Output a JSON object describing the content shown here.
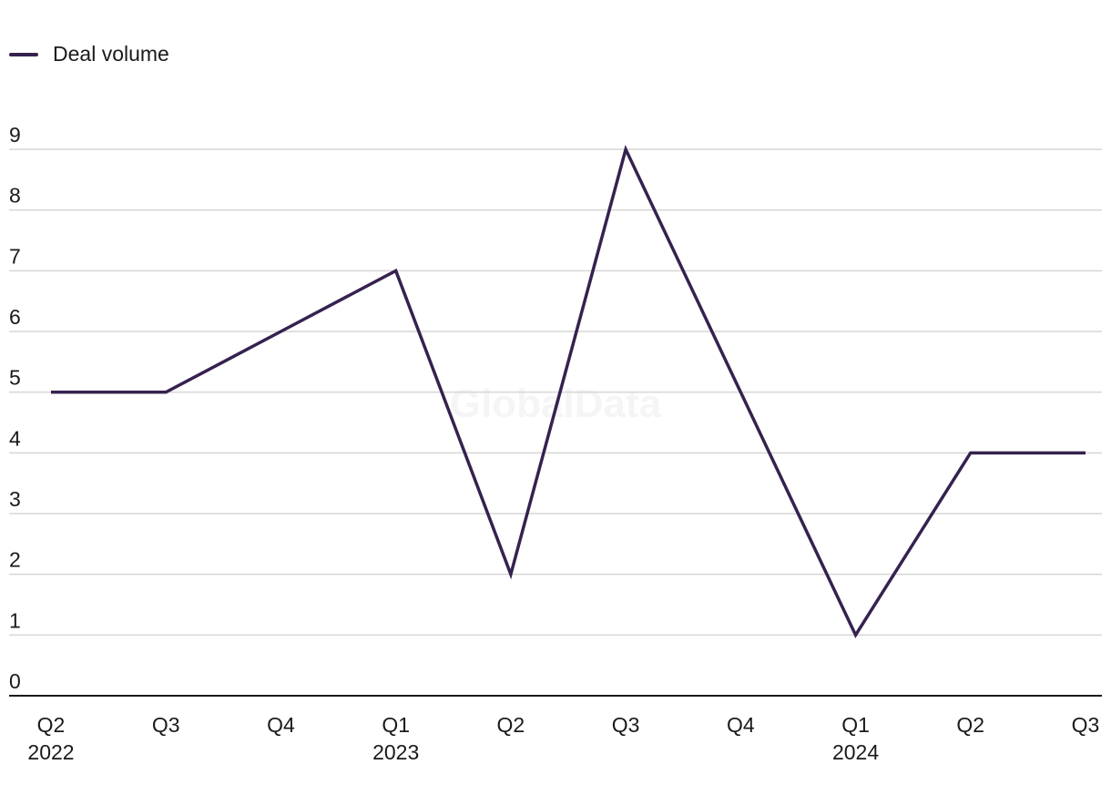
{
  "chart_data": {
    "type": "line",
    "categories": [
      "Q2 2022",
      "Q3 2022",
      "Q4 2022",
      "Q1 2023",
      "Q2 2023",
      "Q3 2023",
      "Q4 2023",
      "Q1 2024",
      "Q2 2024",
      "Q3 2024"
    ],
    "x_tick_labels": [
      {
        "quarter": "Q2",
        "year": "2022"
      },
      {
        "quarter": "Q3",
        "year": ""
      },
      {
        "quarter": "Q4",
        "year": ""
      },
      {
        "quarter": "Q1",
        "year": "2023"
      },
      {
        "quarter": "Q2",
        "year": ""
      },
      {
        "quarter": "Q3",
        "year": ""
      },
      {
        "quarter": "Q4",
        "year": ""
      },
      {
        "quarter": "Q1",
        "year": "2024"
      },
      {
        "quarter": "Q2",
        "year": ""
      },
      {
        "quarter": "Q3",
        "year": ""
      }
    ],
    "series": [
      {
        "name": "Deal volume",
        "values": [
          5,
          5,
          6,
          7,
          2,
          9,
          5,
          1,
          4,
          4
        ],
        "color": "#35224f"
      }
    ],
    "ylim": [
      0,
      9
    ],
    "yticks": [
      0,
      1,
      2,
      3,
      4,
      5,
      6,
      7,
      8,
      9
    ],
    "grid": true,
    "legend_position": "top-left",
    "watermark": "GlobalData"
  }
}
